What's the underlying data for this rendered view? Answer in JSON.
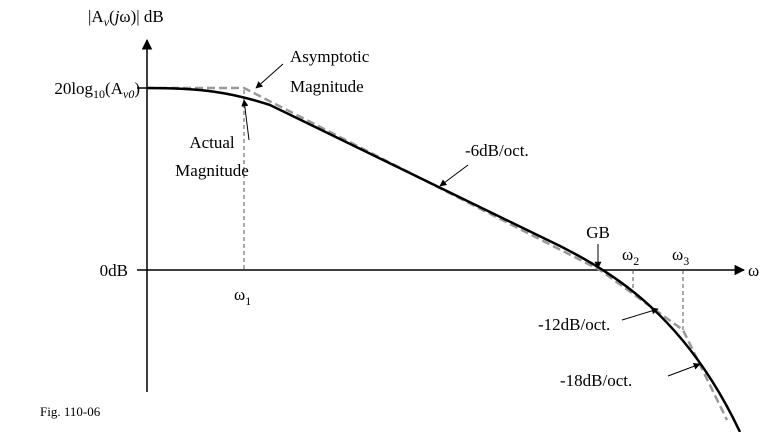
{
  "labels": {
    "y_axis": [
      "|A",
      "v",
      "(",
      "j",
      "ω)| dB"
    ],
    "x_axis": "ω",
    "top_level": [
      "20log",
      "10",
      "(A",
      "v0",
      ")"
    ],
    "zero_level": "0dB",
    "omega1": [
      "ω",
      "1"
    ],
    "omega2": [
      "ω",
      "2"
    ],
    "omega3": [
      "ω",
      "3"
    ],
    "asymptotic": [
      "Asymptotic",
      "Magnitude"
    ],
    "actual": [
      "Actual",
      "Magnitude"
    ],
    "slope1": "-6dB/oct.",
    "gb": "GB",
    "slope2": "-12dB/oct.",
    "slope3": "-18dB/oct.",
    "figure": "Fig. 110-06"
  }
}
